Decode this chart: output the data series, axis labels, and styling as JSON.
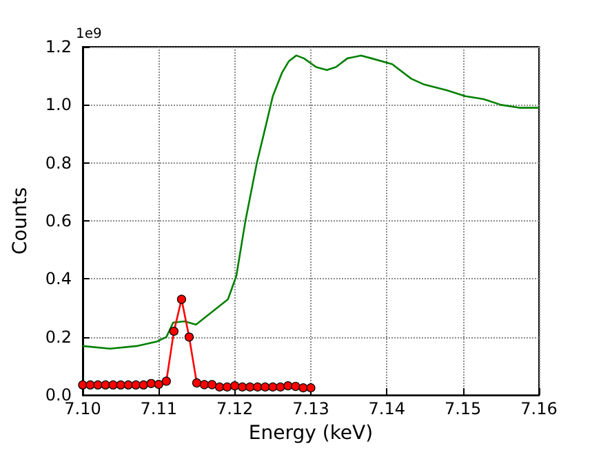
{
  "chart_data": {
    "type": "line",
    "xlabel": "Energy (keV)",
    "ylabel": "Counts",
    "annotations": [
      "1e9"
    ],
    "xlim": [
      7.1,
      7.16
    ],
    "xticks": [
      {
        "value": 7.1,
        "label": "7.10"
      },
      {
        "value": 7.11,
        "label": "7.11"
      },
      {
        "value": 7.12,
        "label": "7.12"
      },
      {
        "value": 7.13,
        "label": "7.13"
      },
      {
        "value": 7.14,
        "label": "7.14"
      },
      {
        "value": 7.15,
        "label": "7.15"
      },
      {
        "value": 7.16,
        "label": "7.16"
      }
    ],
    "ylim": [
      0,
      1.2
    ],
    "yticks": [
      {
        "value": 0,
        "label": "0.0"
      },
      {
        "value": 0.2,
        "label": "0.2"
      },
      {
        "value": 0.4,
        "label": "0.4"
      },
      {
        "value": 0.6,
        "label": "0.6"
      },
      {
        "value": 0.8,
        "label": "0.8"
      },
      {
        "value": 1.0,
        "label": "1.0"
      },
      {
        "value": 1.2,
        "label": "1.2"
      }
    ],
    "grid": true,
    "line_style": "solid",
    "series": [
      {
        "color": "#008000",
        "marker": "none",
        "x": [
          7.1,
          7.1036,
          7.1071,
          7.1098,
          7.111,
          7.1119,
          7.1134,
          7.1149,
          7.1167,
          7.1191,
          7.1202,
          7.1214,
          7.1229,
          7.1241,
          7.125,
          7.1262,
          7.1271,
          7.1281,
          7.1291,
          7.1307,
          7.1321,
          7.1333,
          7.1348,
          7.1366,
          7.138,
          7.1407,
          7.1432,
          7.1449,
          7.1479,
          7.1503,
          7.1527,
          7.155,
          7.1574,
          7.16
        ],
        "values": [
          0.169,
          0.16,
          0.169,
          0.185,
          0.2,
          0.25,
          0.254,
          0.243,
          0.28,
          0.33,
          0.41,
          0.6,
          0.8,
          0.93,
          1.03,
          1.11,
          1.15,
          1.17,
          1.16,
          1.13,
          1.12,
          1.13,
          1.16,
          1.17,
          1.16,
          1.14,
          1.09,
          1.07,
          1.05,
          1.03,
          1.02,
          1.0,
          0.99,
          0.99
        ]
      },
      {
        "color": "#ff0000",
        "marker": "circle",
        "x": [
          7.1,
          7.101,
          7.102,
          7.103,
          7.104,
          7.105,
          7.106,
          7.107,
          7.108,
          7.109,
          7.11,
          7.111,
          7.112,
          7.113,
          7.114,
          7.115,
          7.116,
          7.117,
          7.118,
          7.119,
          7.12,
          7.121,
          7.122,
          7.123,
          7.124,
          7.125,
          7.126,
          7.127,
          7.128,
          7.129,
          7.13
        ],
        "values": [
          0.035,
          0.035,
          0.035,
          0.035,
          0.035,
          0.035,
          0.035,
          0.035,
          0.035,
          0.04,
          0.037,
          0.048,
          0.22,
          0.33,
          0.2,
          0.042,
          0.036,
          0.036,
          0.028,
          0.028,
          0.032,
          0.028,
          0.028,
          0.028,
          0.028,
          0.028,
          0.028,
          0.032,
          0.03,
          0.025,
          0.025
        ]
      }
    ]
  }
}
